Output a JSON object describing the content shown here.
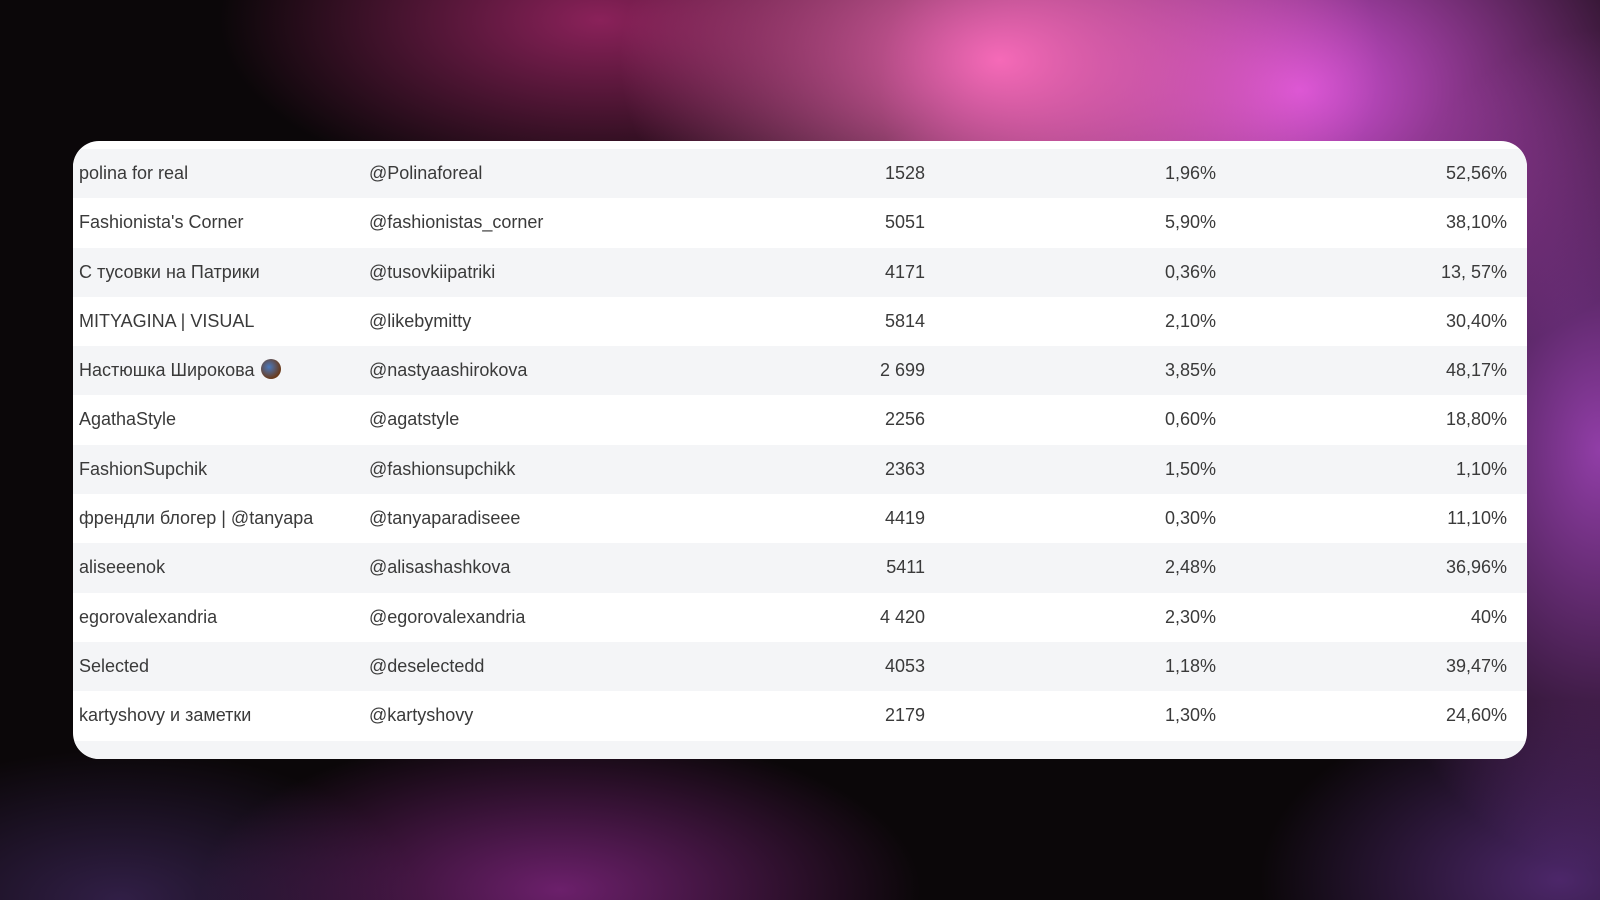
{
  "table": {
    "rows": [
      [
        "polina for real",
        "@Polinaforeal",
        "1528",
        "1,96%",
        "52,56%"
      ],
      [
        "Fashionista's Corner",
        "@fashionistas_corner",
        "5051",
        "5,90%",
        "38,10%"
      ],
      [
        "С тусовки на Патрики",
        "@tusovkiipatriki",
        "4171",
        "0,36%",
        "13, 57%"
      ],
      [
        "MITYAGINA | VISUAL",
        "@likebymitty",
        "5814",
        "2,10%",
        "30,40%"
      ],
      [
        "Настюшка Широкова",
        "@nastyaashirokova",
        "2 699",
        "3,85%",
        "48,17%"
      ],
      [
        "AgathaStyle",
        "@agatstyle",
        "2256",
        "0,60%",
        "18,80%"
      ],
      [
        "FashionSupchik",
        "@fashionsupchikk",
        "2363",
        "1,50%",
        "1,10%"
      ],
      [
        "френдли блогер | @tanyapa",
        "@tanyaparadiseee",
        "4419",
        "0,30%",
        "11,10%"
      ],
      [
        "aliseeenok",
        "@alisashashkova",
        "5411",
        "2,48%",
        "36,96%"
      ],
      [
        "egorovalexandria",
        "@egorovalexandria",
        "4 420",
        "2,30%",
        "40%"
      ],
      [
        "Selected",
        "@deselectedd",
        "4053",
        "1,18%",
        "39,47%"
      ],
      [
        "kartyshovy и заметки",
        "@kartyshovy",
        "2179",
        "1,30%",
        "24,60%"
      ]
    ]
  }
}
